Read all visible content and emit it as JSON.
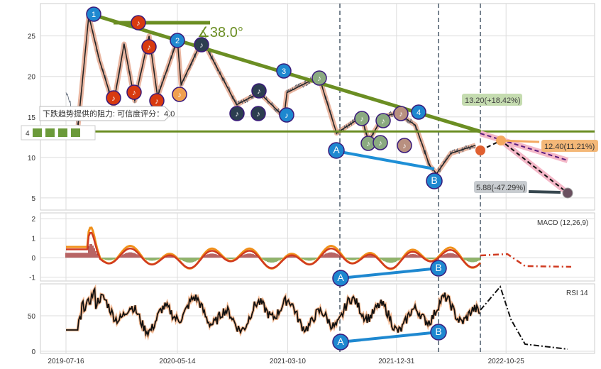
{
  "chart_data": {
    "type": "line",
    "x_tick_labels": [
      "2019-07-16",
      "2020-05-14",
      "2021-03-10",
      "2021-12-31",
      "2022-10-25"
    ],
    "grid": true,
    "price_panel": {
      "y_ticks": [
        5,
        10,
        15,
        20,
        25
      ],
      "ylim": [
        3.5,
        29
      ],
      "series": {
        "x": [
          "2019-07-16",
          "2019-08-18",
          "2019-09-16",
          "2019-10-15",
          "2019-11-22",
          "2019-12-21",
          "2020-01-19",
          "2020-02-27",
          "2020-03-21",
          "2020-05-14",
          "2020-05-24",
          "2020-07-21",
          "2020-10-22",
          "2020-12-23",
          "2021-02-28",
          "2021-03-08",
          "2021-06-03",
          "2021-07-21",
          "2021-09-27",
          "2021-10-16",
          "2021-11-24",
          "2022-01-02",
          "2022-02-20",
          "2022-03-31",
          "2022-04-19",
          "2022-05-28",
          "2022-08-03"
        ],
        "y": [
          18,
          14,
          27.5,
          22,
          16.5,
          24,
          17,
          25,
          17.5,
          24.5,
          19,
          24.5,
          16.5,
          18,
          15,
          18,
          20,
          13,
          15,
          12,
          15,
          15.5,
          14,
          9,
          8,
          10.5,
          11.5
        ]
      },
      "horizontal_level": 13.2,
      "angle_label": "∡38.0°",
      "wave_labels": [
        "1",
        "2",
        "3",
        "4",
        "A",
        "B"
      ],
      "projections": [
        {
          "label": "13.20(+18.42%)",
          "color": "#c5dcb0"
        },
        {
          "label": "12.40(11.21%)",
          "color": "#f4b878"
        },
        {
          "label": "5.88(-47.29%)",
          "color": "#c8ccd0"
        }
      ],
      "tooltip": "下跌趋势提供的阻力: 可信度评分：4.0",
      "score_label": "4"
    },
    "macd_panel": {
      "title": "MACD (12,26,9)",
      "y_ticks": [
        -1,
        0,
        1,
        2
      ],
      "ylim": [
        -1.2,
        2.3
      ],
      "wave_labels": [
        "A",
        "B"
      ]
    },
    "rsi_panel": {
      "title": "RSI 14",
      "y_ticks": [
        0,
        50
      ],
      "ylim": [
        -3,
        95
      ],
      "wave_labels": [
        "A",
        "B"
      ]
    }
  }
}
